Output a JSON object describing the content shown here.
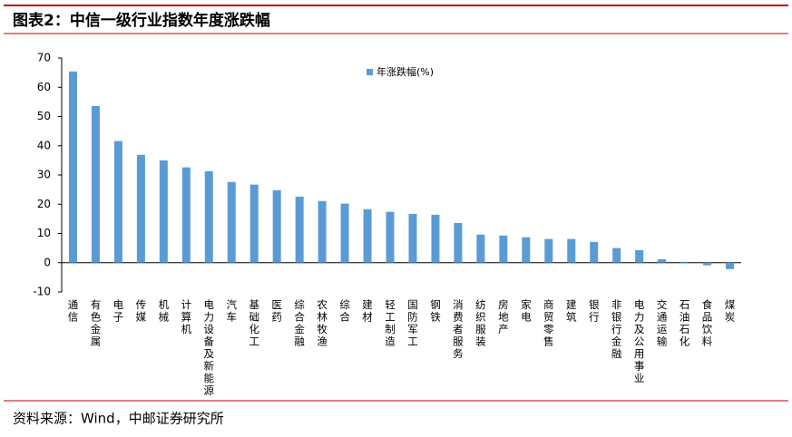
{
  "title": "图表2：中信一级行业指数年度涨跌幅",
  "source": "资料来源：Wind，中邮证券研究所",
  "chart_data": {
    "type": "bar",
    "categories": [
      "通信",
      "有色金属",
      "电子",
      "传媒",
      "机械",
      "计算机",
      "电力设备及新能源",
      "汽车",
      "基础化工",
      "医药",
      "综合金融",
      "农林牧渔",
      "综合",
      "建材",
      "轻工制造",
      "国防军工",
      "钢铁",
      "消费者服务",
      "纺织服装",
      "房地产",
      "家电",
      "商贸零售",
      "建筑",
      "银行",
      "非银行金融",
      "电力及公用事业",
      "交通运输",
      "石油石化",
      "食品饮料",
      "煤炭"
    ],
    "series": [
      {
        "name": "年涨跌幅(%)",
        "color": "#5b9bd5",
        "values": [
          65.4,
          53.6,
          41.6,
          36.9,
          35.0,
          32.6,
          31.3,
          27.6,
          26.7,
          24.8,
          22.6,
          21.1,
          20.2,
          18.3,
          17.4,
          16.7,
          16.4,
          13.6,
          9.6,
          9.3,
          8.7,
          8.1,
          8.1,
          7.1,
          5.0,
          4.3,
          1.2,
          0.3,
          -0.9,
          -2.2
        ]
      }
    ],
    "ylim": [
      -10,
      70
    ],
    "yticks": [
      -10,
      0,
      10,
      20,
      30,
      40,
      50,
      60,
      70
    ]
  }
}
